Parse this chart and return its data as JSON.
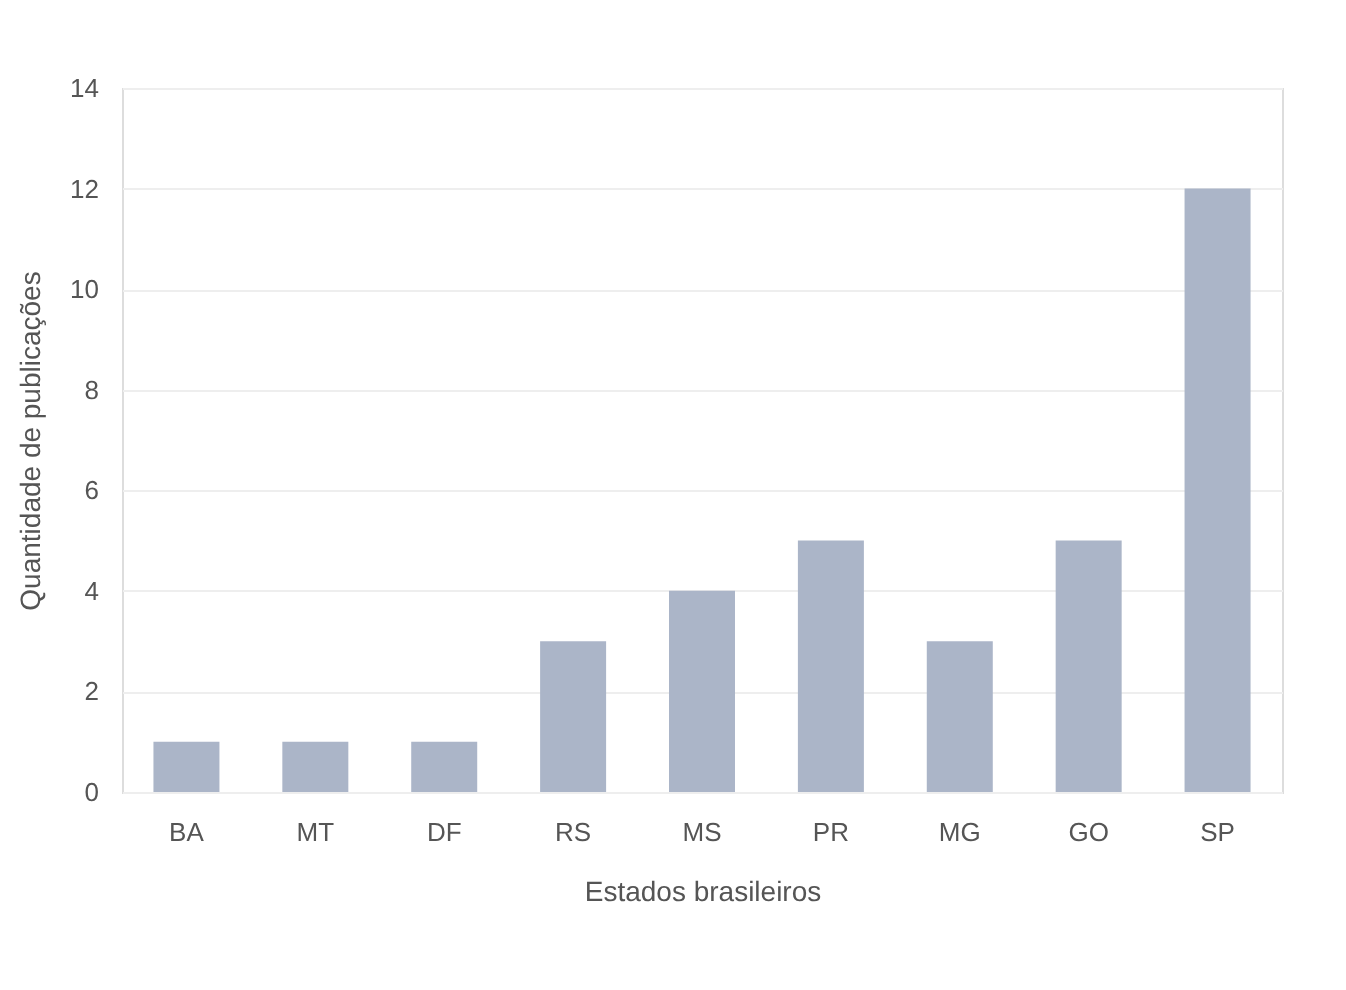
{
  "chart_data": {
    "type": "bar",
    "xlabel": "Estados brasileiros",
    "ylabel": "Quantidade de publicações",
    "categories": [
      "BA",
      "MT",
      "DF",
      "RS",
      "MS",
      "PR",
      "MG",
      "GO",
      "SP"
    ],
    "values": [
      1,
      1,
      1,
      3,
      4,
      5,
      3,
      5,
      12
    ],
    "color": "#abb5c8",
    "ylim": [
      0,
      14
    ],
    "yticks": [
      0,
      2,
      4,
      6,
      8,
      10,
      12,
      14
    ],
    "grid": "y"
  }
}
